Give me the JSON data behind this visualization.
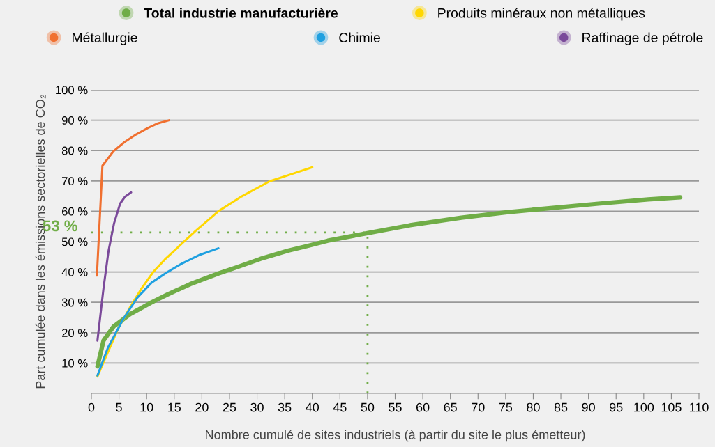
{
  "chart_data": {
    "type": "line",
    "xlabel": "Nombre cumulé de sites industriels (à partir du site le plus émetteur)",
    "ylabel": "Part cumulée dans les émissions sectorielles de CO₂",
    "xlim": [
      0,
      110
    ],
    "xticks": [
      0,
      5,
      10,
      15,
      20,
      25,
      30,
      35,
      40,
      45,
      50,
      55,
      60,
      65,
      70,
      75,
      80,
      85,
      90,
      95,
      100,
      105,
      110
    ],
    "ylim": [
      0,
      100
    ],
    "yticks": [
      {
        "value": 0,
        "label": null
      },
      {
        "value": 10,
        "label": "10 %"
      },
      {
        "value": 20,
        "label": "20 %"
      },
      {
        "value": 30,
        "label": "30 %"
      },
      {
        "value": 40,
        "label": "40 %"
      },
      {
        "value": 50,
        "label": "50 %"
      },
      {
        "value": 60,
        "label": "60 %"
      },
      {
        "value": 70,
        "label": "70 %"
      },
      {
        "value": 80,
        "label": "80 %"
      },
      {
        "value": 90,
        "label": "90 %"
      },
      {
        "value": 100,
        "label": "100 %"
      }
    ],
    "grid": "y",
    "legend": "top",
    "marker": "none",
    "line_style": "solid",
    "ref_lines": [
      {
        "axis": "y",
        "value": 53,
        "label": "53 %",
        "color": "#70ad47",
        "line_style": "dotted"
      },
      {
        "axis": "x",
        "value": 50,
        "color": "#70ad47",
        "line_style": "dotted"
      }
    ],
    "series": [
      {
        "name": "Total industrie manufacturière",
        "color": "#70ad47",
        "x": [
          1.1,
          2.2,
          4,
          7,
          10.9,
          13.8,
          17.9,
          23,
          26.4,
          30.6,
          35.6,
          39,
          42.8,
          50.3,
          57.7,
          67,
          75.5,
          83.5,
          91.8,
          100.8,
          106.6
        ],
        "values": [
          8.9,
          17.4,
          22,
          26.1,
          30,
          32.6,
          36,
          39.5,
          41.6,
          44.3,
          47,
          48.5,
          50.3,
          52.9,
          55.4,
          57.9,
          59.7,
          61.1,
          62.5,
          63.9,
          64.6
        ]
      },
      {
        "name": "Produits minéraux non métalliques",
        "color": "#ffd700",
        "x": [
          1.1,
          2.8,
          4.9,
          7,
          9.1,
          11.2,
          13.3,
          16.3,
          18.8,
          23,
          27.2,
          32.3,
          36.5,
          40
        ],
        "values": [
          5.6,
          12.8,
          21.5,
          28.4,
          34.6,
          40,
          44.1,
          49.2,
          53.4,
          60,
          64.9,
          69.9,
          72.4,
          74.5
        ]
      },
      {
        "name": "Métallurgie",
        "color": "#f07030",
        "x": [
          1,
          2,
          4,
          6,
          8.1,
          10.2,
          12.1,
          14.1
        ],
        "values": [
          38.8,
          75,
          79.8,
          82.8,
          85.3,
          87.4,
          89,
          90
        ]
      },
      {
        "name": "Chimie",
        "color": "#1fa0e0",
        "x": [
          1.1,
          3,
          5.8,
          8.3,
          10.9,
          13.8,
          16.3,
          19.7,
          23
        ],
        "values": [
          5.9,
          15.1,
          24.6,
          31.5,
          36.5,
          40,
          42.7,
          45.7,
          47.8
        ]
      },
      {
        "name": "Raffinage de pétrole",
        "color": "#7b4a9a",
        "x": [
          1.1,
          2.2,
          3.1,
          4.1,
          5.2,
          6.1,
          7.2
        ],
        "values": [
          17.4,
          34.7,
          46.9,
          56,
          62.5,
          64.8,
          66.2
        ]
      }
    ]
  }
}
